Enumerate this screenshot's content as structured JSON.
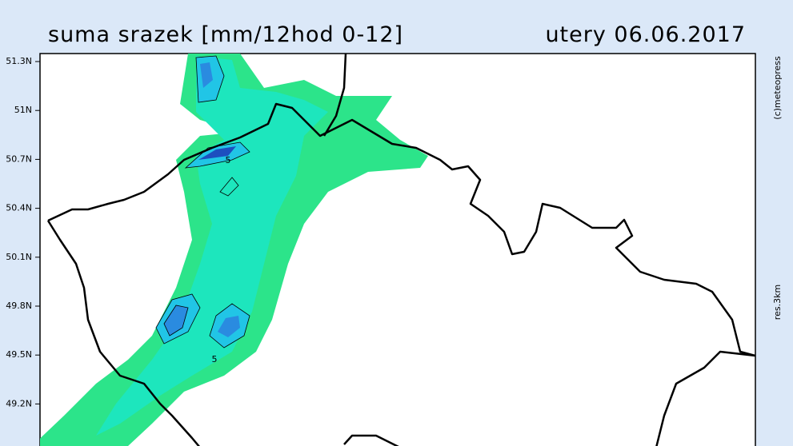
{
  "header": {
    "title": "suma srazek [mm/12hod 0-12]",
    "date": "utery 06.06.2017"
  },
  "lat_labels": [
    "51.3N",
    "51N",
    "50.7N",
    "50.4N",
    "50.1N",
    "49.8N",
    "49.5N",
    "49.2N"
  ],
  "side_labels": [
    "(c)meteopress",
    "res.3km"
  ],
  "contour_labels": [
    "5",
    "5"
  ]
}
